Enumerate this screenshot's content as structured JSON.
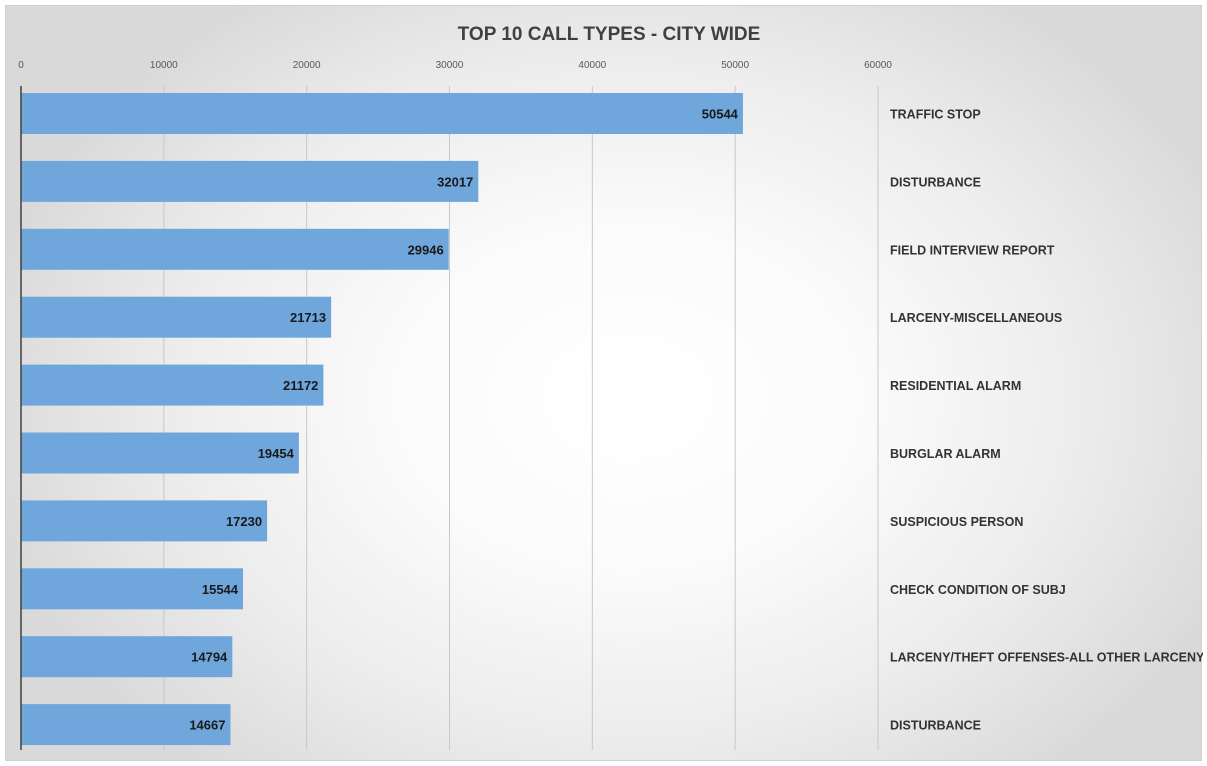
{
  "chart_data": {
    "type": "bar",
    "orientation": "horizontal",
    "title": "TOP 10 CALL TYPES - CITY WIDE",
    "xlabel": "",
    "ylabel": "",
    "xlim": [
      0,
      60000
    ],
    "x_ticks": [
      "0",
      "10000",
      "20000",
      "30000",
      "40000",
      "50000",
      "60000"
    ],
    "x_tick_values": [
      0,
      10000,
      20000,
      30000,
      40000,
      50000,
      60000
    ],
    "x_axis_position": "top",
    "category_labels_position": "right",
    "grid": true,
    "bar_color": "#6fa7dc",
    "data_labels": true,
    "categories": [
      "TRAFFIC STOP",
      "DISTURBANCE",
      "FIELD INTERVIEW REPORT",
      "LARCENY-MISCELLANEOUS",
      "RESIDENTIAL ALARM",
      "BURGLAR ALARM",
      "SUSPICIOUS PERSON",
      "CHECK CONDITION OF SUBJ",
      "LARCENY/THEFT OFFENSES-ALL OTHER LARCENY",
      "DISTURBANCE"
    ],
    "values": [
      50544,
      32017,
      29946,
      21713,
      21172,
      19454,
      17230,
      15544,
      14794,
      14667
    ]
  }
}
